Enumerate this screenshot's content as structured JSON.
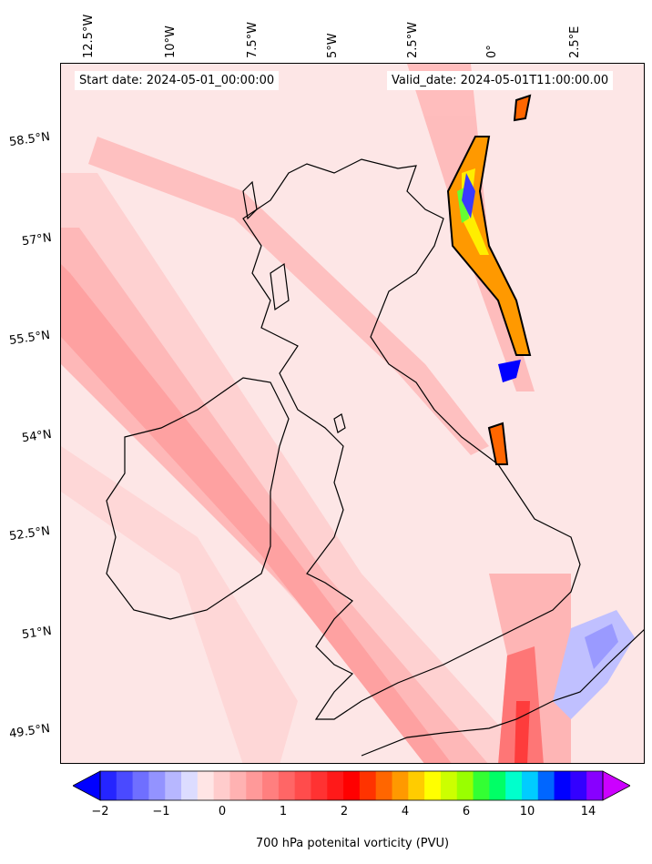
{
  "header": {
    "start_date": "Start date: 2024-05-01_00:00:00",
    "valid_date": "Valid_date: 2024-05-01T11:00:00.00"
  },
  "lon_labels": [
    "12.5°W",
    "10°W",
    "7.5°W",
    "5°W",
    "2.5°W",
    "0°",
    "2.5°E"
  ],
  "lat_labels": [
    "58.5°N",
    "57°N",
    "55.5°N",
    "54°N",
    "52.5°N",
    "51°N",
    "49.5°N"
  ],
  "colorbar": {
    "label": "700 hPa potenital vorticity (PVU)",
    "ticks": [
      "−2",
      "−1",
      "0",
      "1",
      "2",
      "4",
      "6",
      "10",
      "14"
    ],
    "colors": [
      "#0000ff",
      "#2525ff",
      "#4a4aff",
      "#6f6fff",
      "#9393ff",
      "#b7b7ff",
      "#dcdcff",
      "#ffe5e5",
      "#ffcccc",
      "#ffb2b2",
      "#ff9999",
      "#ff7f7f",
      "#ff6666",
      "#ff4c4c",
      "#ff3232",
      "#ff1919",
      "#ff0000",
      "#ff3300",
      "#ff6600",
      "#ff9900",
      "#ffcc00",
      "#ffff00",
      "#ccff00",
      "#99ff00",
      "#33ff33",
      "#00ff66",
      "#00ffcc",
      "#00ccff",
      "#0066ff",
      "#0000ff",
      "#3300ff",
      "#8800ff",
      "#cc00ff"
    ]
  }
}
